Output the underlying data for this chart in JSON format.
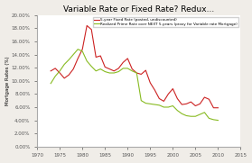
{
  "title": "Variable Rate or Fixed Rate? Redux...",
  "legend1": "5-year Fixed Rate (posted, undiscounted)",
  "legend2": "Realized Prime Rate over NEXT 5-years (proxy for Variable rate Mortgage)",
  "ylabel": "Mortgage Rates (%)",
  "xlim": [
    1970,
    2015
  ],
  "ylim": [
    0.0,
    0.2
  ],
  "yticks": [
    0.0,
    0.02,
    0.04,
    0.06,
    0.08,
    0.1,
    0.12,
    0.14,
    0.16,
    0.18,
    0.2
  ],
  "xticks": [
    1970,
    1975,
    1980,
    1985,
    1990,
    1995,
    2000,
    2005,
    2010,
    2015
  ],
  "color_red": "#cc2222",
  "color_green": "#88bb22",
  "fixed_rate_x": [
    1973,
    1974,
    1975,
    1976,
    1977,
    1978,
    1979,
    1980,
    1981,
    1982,
    1983,
    1984,
    1985,
    1986,
    1987,
    1988,
    1989,
    1990,
    1991,
    1992,
    1993,
    1994,
    1995,
    1996,
    1997,
    1998,
    1999,
    2000,
    2001,
    2002,
    2003,
    2004,
    2005,
    2006,
    2007,
    2008,
    2009,
    2010
  ],
  "fixed_rate_y": [
    0.115,
    0.119,
    0.112,
    0.104,
    0.109,
    0.118,
    0.134,
    0.148,
    0.184,
    0.178,
    0.136,
    0.138,
    0.121,
    0.118,
    0.115,
    0.119,
    0.128,
    0.134,
    0.118,
    0.112,
    0.11,
    0.116,
    0.097,
    0.086,
    0.073,
    0.069,
    0.08,
    0.088,
    0.073,
    0.064,
    0.065,
    0.068,
    0.062,
    0.065,
    0.075,
    0.072,
    0.059,
    0.059
  ],
  "prime_rate_x": [
    1973,
    1974,
    1975,
    1976,
    1977,
    1978,
    1979,
    1980,
    1981,
    1982,
    1983,
    1984,
    1985,
    1986,
    1987,
    1988,
    1989,
    1990,
    1991,
    1992,
    1993,
    1994,
    1995,
    1996,
    1997,
    1998,
    1999,
    2000,
    2001,
    2002,
    2003,
    2004,
    2005,
    2006,
    2007,
    2008,
    2009,
    2010
  ],
  "prime_rate_y": [
    0.096,
    0.107,
    0.115,
    0.125,
    0.132,
    0.14,
    0.148,
    0.145,
    0.13,
    0.122,
    0.115,
    0.118,
    0.114,
    0.112,
    0.112,
    0.114,
    0.119,
    0.119,
    0.115,
    0.112,
    0.07,
    0.066,
    0.065,
    0.064,
    0.063,
    0.06,
    0.06,
    0.062,
    0.055,
    0.05,
    0.047,
    0.046,
    0.046,
    0.049,
    0.052,
    0.043,
    0.041,
    0.04
  ],
  "background_color": "#f0ede8",
  "plot_bg": "#ffffff"
}
